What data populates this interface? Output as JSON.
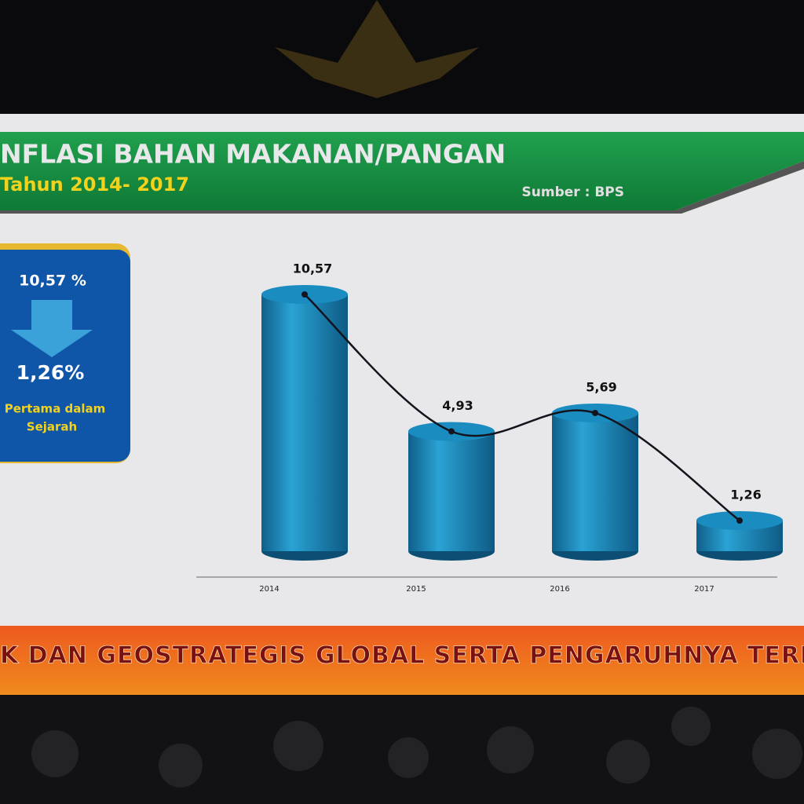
{
  "chart_data": {
    "type": "bar",
    "title": "NFLASI BAHAN MAKANAN/PANGAN",
    "subtitle": "Tahun 2014- 2017",
    "source": "Sumber : BPS",
    "categories": [
      "2014",
      "2015",
      "2016",
      "2017"
    ],
    "values": [
      10.57,
      4.93,
      5.69,
      1.26
    ],
    "value_labels": [
      "10,57",
      "4,93",
      "5,69",
      "1,26"
    ],
    "color": "#1a8cc0",
    "line_color": "#14141e"
  },
  "side_box": {
    "from": "10,57 %",
    "to": "1,26%",
    "note_line1": "Pertama dalam",
    "note_line2": "Sejarah"
  },
  "banner": {
    "text": "K DAN GEOSTRATEGIS GLOBAL SERTA PENGARUHNYA TERHADAP"
  }
}
